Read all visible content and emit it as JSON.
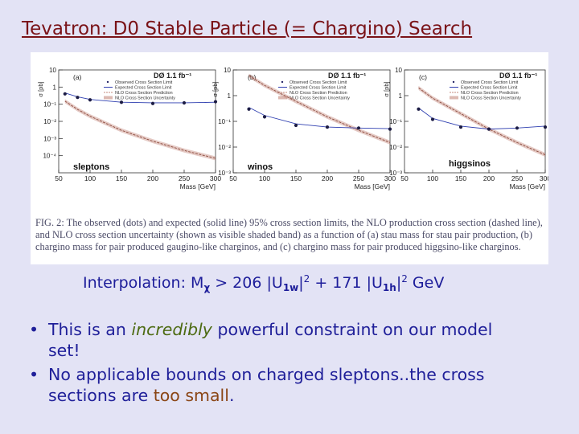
{
  "slide": {
    "title": "Tevatron: D0 Stable Particle (= Chargino) Search",
    "interpolation": {
      "prefix": "Interpolation: M",
      "chi": "χ",
      "mid1": " > 206 |U",
      "sub1": "1w",
      "sq1": "2",
      "mid2": " + 171 |U",
      "sub2": "1h",
      "sq2": "2",
      "suffix": " GeV"
    },
    "bullets": [
      {
        "a": "This is an ",
        "em": "incredibly",
        "b": " powerful constraint on our model set!"
      },
      {
        "a": "No applicable bounds on charged sleptons..the cross sections are ",
        "hl": "too small",
        "b": "."
      }
    ]
  },
  "colors": {
    "title": "#7a1318",
    "text": "#1f1f99",
    "emphasis": "#4d6b12",
    "highlight": "#8a4515",
    "expected_line": "#2f3fb0",
    "nlo_band": "#c58a7e"
  },
  "figure": {
    "caption": "FIG. 2: The observed (dots) and expected (solid line) 95% cross section limits, the NLO production cross section (dashed line), and NLO cross section uncertainty (shown as visible shaded band) as a function of (a) stau mass for stau pair production, (b) chargino mass for pair produced gaugino-like charginos, and (c) chargino mass for pair produced higgsino-like charginos."
  },
  "chart_data": [
    {
      "type": "line",
      "panel": "(a)",
      "experiment": "DØ 1.1 fb⁻¹",
      "region_label": "sleptons",
      "xlabel": "Mass [GeV]",
      "ylabel": "σ [pb]",
      "xlim": [
        50,
        300
      ],
      "ylim": [
        1e-05,
        10
      ],
      "yscale": "log",
      "xticks": [
        50,
        100,
        150,
        200,
        250,
        300
      ],
      "yticks": [
        10,
        1,
        0.1,
        0.01,
        0.001,
        0.0001
      ],
      "ytick_labels": [
        "10",
        "1",
        "10⁻¹",
        "10⁻²",
        "10⁻³",
        "10⁻⁴"
      ],
      "legend": [
        "Observed Cross Section Limit",
        "Expected Cross Section Limit",
        "NLO Cross Section Prediction",
        "NLO Cross Section Uncertainty"
      ],
      "legend_position": "top-right",
      "series": [
        {
          "name": "Observed Cross Section Limit",
          "style": "dots",
          "x": [
            60,
            80,
            100,
            150,
            200,
            250,
            300
          ],
          "y": [
            0.4,
            0.25,
            0.18,
            0.13,
            0.11,
            0.12,
            0.14
          ]
        },
        {
          "name": "Expected Cross Section Limit",
          "style": "solid",
          "x": [
            60,
            80,
            100,
            150,
            200,
            250,
            300
          ],
          "y": [
            0.45,
            0.27,
            0.19,
            0.13,
            0.12,
            0.12,
            0.13
          ]
        },
        {
          "name": "NLO Cross Section Prediction",
          "style": "band",
          "x": [
            60,
            80,
            100,
            150,
            200,
            250,
            300
          ],
          "y": [
            0.15,
            0.05,
            0.02,
            0.003,
            0.0007,
            0.0002,
            7e-05
          ]
        }
      ]
    },
    {
      "type": "line",
      "panel": "(b)",
      "experiment": "DØ 1.1 fb⁻¹",
      "region_label": "winos",
      "xlabel": "Mass [GeV]",
      "ylabel": "σ [pb]",
      "xlim": [
        50,
        300
      ],
      "ylim": [
        0.001,
        10
      ],
      "yscale": "log",
      "xticks": [
        50,
        100,
        150,
        200,
        250,
        300
      ],
      "yticks": [
        10,
        1,
        0.1,
        0.01,
        0.001
      ],
      "ytick_labels": [
        "10",
        "1",
        "10⁻¹",
        "10⁻²",
        "10⁻³"
      ],
      "legend": [
        "Observed Cross Section Limit",
        "Expected Cross Section Limit",
        "NLO Cross Section Prediction",
        "NLO Cross Section Uncertainty"
      ],
      "legend_position": "top-right",
      "series": [
        {
          "name": "Observed Cross Section Limit",
          "style": "dots",
          "x": [
            75,
            100,
            150,
            200,
            250,
            300
          ],
          "y": [
            0.3,
            0.15,
            0.07,
            0.06,
            0.055,
            0.05
          ]
        },
        {
          "name": "Expected Cross Section Limit",
          "style": "solid",
          "x": [
            75,
            100,
            150,
            200,
            250,
            300
          ],
          "y": [
            0.35,
            0.17,
            0.08,
            0.06,
            0.055,
            0.052
          ]
        },
        {
          "name": "NLO Cross Section Prediction",
          "style": "band",
          "x": [
            75,
            100,
            150,
            200,
            250,
            300
          ],
          "y": [
            6,
            2.5,
            0.6,
            0.15,
            0.045,
            0.015
          ]
        }
      ]
    },
    {
      "type": "line",
      "panel": "(c)",
      "experiment": "DØ 1.1 fb⁻¹",
      "region_label": "higgsinos",
      "xlabel": "Mass [GeV]",
      "ylabel": "σ [pb]",
      "xlim": [
        50,
        300
      ],
      "ylim": [
        0.001,
        10
      ],
      "yscale": "log",
      "xticks": [
        50,
        100,
        150,
        200,
        250,
        300
      ],
      "yticks": [
        10,
        1,
        0.1,
        0.01,
        0.001
      ],
      "ytick_labels": [
        "10",
        "1",
        "10⁻¹",
        "10⁻²",
        "10⁻³"
      ],
      "legend": [
        "Observed Cross Section Limit",
        "Expected Cross Section Limit",
        "NLO Cross Section Prediction",
        "NLO Cross Section Uncertainty"
      ],
      "legend_position": "top-right",
      "series": [
        {
          "name": "Observed Cross Section Limit",
          "style": "dots",
          "x": [
            75,
            100,
            150,
            200,
            250,
            300
          ],
          "y": [
            0.3,
            0.12,
            0.06,
            0.05,
            0.055,
            0.06
          ]
        },
        {
          "name": "Expected Cross Section Limit",
          "style": "solid",
          "x": [
            75,
            100,
            150,
            200,
            250,
            300
          ],
          "y": [
            0.33,
            0.13,
            0.065,
            0.05,
            0.055,
            0.065
          ]
        },
        {
          "name": "NLO Cross Section Prediction",
          "style": "band",
          "x": [
            75,
            100,
            150,
            200,
            250,
            300
          ],
          "y": [
            2,
            0.8,
            0.2,
            0.05,
            0.015,
            0.005
          ]
        }
      ]
    }
  ]
}
